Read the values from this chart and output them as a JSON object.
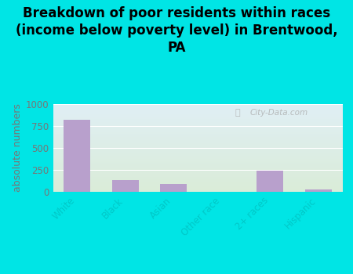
{
  "title": "Breakdown of poor residents within races\n(income below poverty level) in Brentwood,\nPA",
  "categories": [
    "White",
    "Black",
    "Asian",
    "Other race",
    "2+ races",
    "Hispanic"
  ],
  "values": [
    820,
    130,
    90,
    0,
    240,
    30
  ],
  "bar_color": "#b8a0cc",
  "ylabel": "absolute numbers",
  "ylim": [
    0,
    1000
  ],
  "yticks": [
    0,
    250,
    500,
    750,
    1000
  ],
  "background_outer": "#00e5e5",
  "background_inner_top": "#e0eff5",
  "background_inner_bottom": "#daecd8",
  "watermark": "City-Data.com",
  "title_fontsize": 12,
  "ylabel_fontsize": 9,
  "tick_fontsize": 8.5,
  "tick_color": "#00c8c8",
  "ytick_color": "#777777"
}
